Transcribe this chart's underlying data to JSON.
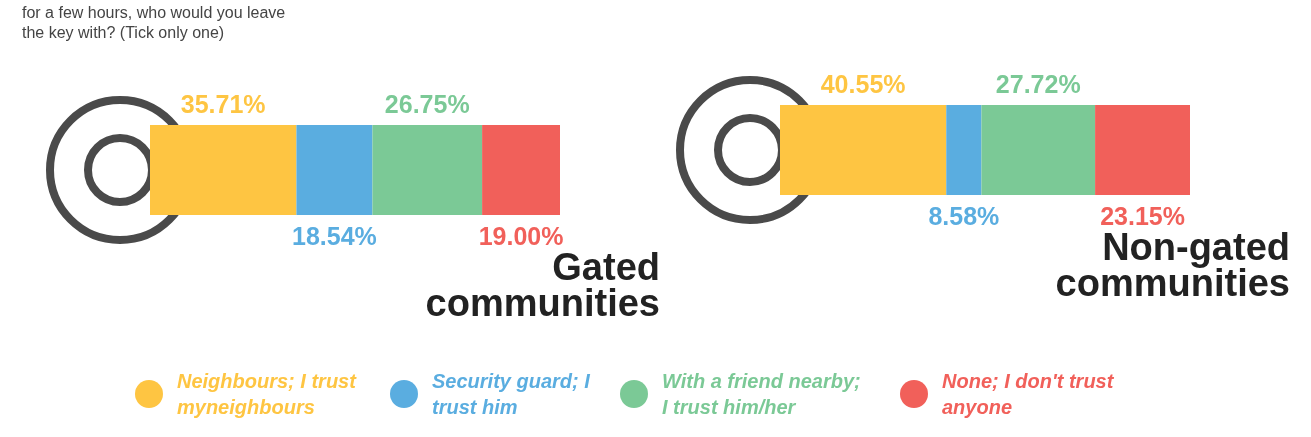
{
  "chart_data": [
    {
      "type": "bar",
      "orientation": "horizontal",
      "stacked": true,
      "title": "Gated communities",
      "categories": [
        null
      ],
      "tick_labels": false,
      "annotations": [
        "for a few hours, who would you leave the key with? (Tick only one)"
      ],
      "series": [
        {
          "color": "#fec542",
          "values": [
            35.71
          ],
          "value_labels": [
            "35.71%"
          ]
        },
        {
          "color": "#5aade0",
          "values": [
            18.54
          ],
          "value_labels": [
            "18.54%"
          ]
        },
        {
          "color": "#7bc996",
          "values": [
            26.75
          ],
          "value_labels": [
            "26.75%"
          ]
        },
        {
          "color": "#f1605a",
          "values": [
            19.0
          ],
          "value_labels": [
            "19.00%"
          ]
        }
      ]
    },
    {
      "type": "bar",
      "orientation": "horizontal",
      "stacked": true,
      "title": "Non-gated communities",
      "categories": [
        null
      ],
      "tick_labels": false,
      "legend": "bottom",
      "series": [
        {
          "name": "Neighbours; I trust myneighbours",
          "color": "#fec542",
          "values": [
            40.55
          ],
          "value_labels": [
            "40.55%"
          ]
        },
        {
          "name": "Security guard; I trust him",
          "color": "#5aade0",
          "values": [
            8.58
          ],
          "value_labels": [
            "8.58%"
          ]
        },
        {
          "name": "With a friend nearby; I trust him/her",
          "color": "#7bc996",
          "values": [
            27.72
          ],
          "value_labels": [
            "27.72%"
          ]
        },
        {
          "name": "None; I don't trust anyone",
          "color": "#f1605a",
          "values": [
            23.15
          ],
          "value_labels": [
            "23.15%"
          ]
        }
      ]
    }
  ]
}
